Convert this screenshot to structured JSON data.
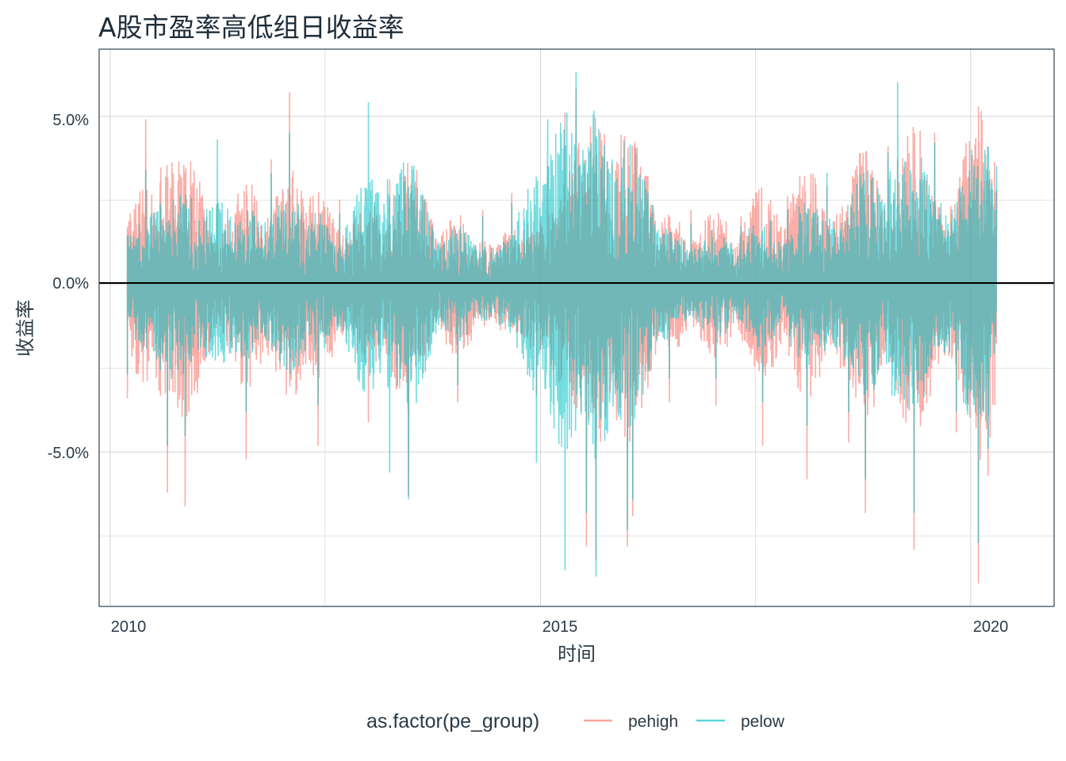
{
  "chart_data": {
    "type": "line",
    "title": "A股市盈率高低组日收益率",
    "xlabel": "时间",
    "ylabel": "收益率",
    "x_ticks": [
      "2010",
      "2015",
      "2020"
    ],
    "y_ticks": [
      "5.0%",
      "0.0%",
      "-5.0%"
    ],
    "x_range": [
      "2009-11-15",
      "2020-12-20"
    ],
    "ylim": [
      -0.096,
      0.07
    ],
    "grid": true,
    "reference_line": {
      "y": 0.0,
      "color": "#000000"
    },
    "legend": {
      "title": "as.factor(pe_group)",
      "position": "bottom",
      "entries": [
        "pehigh",
        "pelow"
      ]
    },
    "series": [
      {
        "name": "pehigh",
        "color": "#F8766D",
        "x": [
          "2010-03-15",
          "2010-06-01",
          "2010-09-01",
          "2010-11-15",
          "2011-04-01",
          "2011-08-01",
          "2011-11-15",
          "2012-02-01",
          "2012-06-01",
          "2012-09-01",
          "2013-01-01",
          "2013-04-01",
          "2013-06-20",
          "2013-10-01",
          "2014-01-15",
          "2014-05-01",
          "2014-09-01",
          "2014-12-15",
          "2015-02-01",
          "2015-04-15",
          "2015-06-01",
          "2015-07-15",
          "2015-08-25",
          "2015-11-01",
          "2016-01-05",
          "2016-01-28",
          "2016-04-01",
          "2016-07-01",
          "2016-10-01",
          "2017-01-15",
          "2017-05-01",
          "2017-08-01",
          "2017-11-15",
          "2018-02-05",
          "2018-05-01",
          "2018-08-01",
          "2018-10-11",
          "2019-01-15",
          "2019-02-25",
          "2019-05-06",
          "2019-08-01",
          "2019-11-01",
          "2020-01-15",
          "2020-02-03",
          "2020-03-15",
          "2020-04-20"
        ],
        "values": [
          -0.034,
          0.049,
          -0.062,
          -0.066,
          0.024,
          -0.052,
          0.037,
          0.057,
          -0.048,
          0.025,
          -0.041,
          0.031,
          -0.063,
          0.018,
          -0.035,
          0.022,
          0.027,
          -0.033,
          0.035,
          0.051,
          0.058,
          -0.078,
          -0.082,
          0.029,
          -0.078,
          -0.069,
          0.032,
          -0.035,
          0.022,
          -0.036,
          0.02,
          -0.048,
          0.026,
          -0.058,
          0.029,
          -0.047,
          -0.068,
          0.041,
          0.037,
          -0.079,
          0.045,
          -0.044,
          0.037,
          -0.089,
          -0.057,
          0.028
        ]
      },
      {
        "name": "pelow",
        "color": "#00BFC4",
        "x": [
          "2010-03-15",
          "2010-06-01",
          "2010-09-01",
          "2010-11-15",
          "2011-04-01",
          "2011-08-01",
          "2011-11-15",
          "2012-02-01",
          "2012-06-01",
          "2012-09-01",
          "2013-01-01",
          "2013-04-01",
          "2013-06-20",
          "2013-10-01",
          "2014-01-15",
          "2014-05-01",
          "2014-09-01",
          "2014-12-15",
          "2015-02-01",
          "2015-04-15",
          "2015-06-01",
          "2015-07-15",
          "2015-08-25",
          "2015-11-01",
          "2016-01-05",
          "2016-01-28",
          "2016-04-01",
          "2016-07-01",
          "2016-10-01",
          "2017-01-15",
          "2017-05-01",
          "2017-08-01",
          "2017-11-15",
          "2018-02-05",
          "2018-05-01",
          "2018-08-01",
          "2018-10-11",
          "2019-01-15",
          "2019-02-25",
          "2019-05-06",
          "2019-08-01",
          "2019-11-01",
          "2020-01-15",
          "2020-02-03",
          "2020-03-15",
          "2020-04-20"
        ],
        "values": [
          -0.027,
          0.034,
          -0.048,
          -0.045,
          0.043,
          -0.038,
          0.033,
          0.045,
          -0.036,
          0.021,
          0.054,
          -0.056,
          -0.064,
          0.016,
          -0.03,
          0.02,
          0.024,
          -0.053,
          0.049,
          -0.085,
          0.063,
          -0.068,
          -0.087,
          0.037,
          -0.073,
          -0.064,
          0.027,
          -0.028,
          0.018,
          -0.028,
          0.017,
          -0.035,
          0.022,
          -0.042,
          0.033,
          -0.038,
          -0.058,
          0.039,
          0.06,
          -0.068,
          0.042,
          -0.038,
          0.035,
          -0.077,
          -0.049,
          0.035
        ]
      }
    ]
  }
}
